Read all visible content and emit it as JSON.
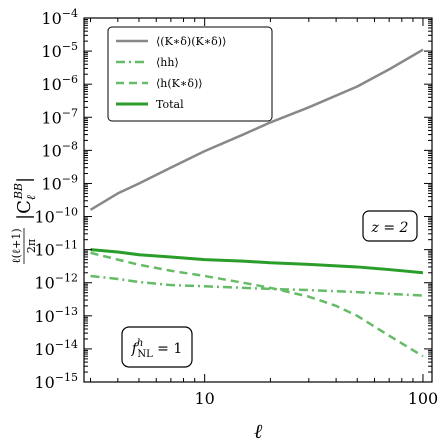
{
  "chart_data": {
    "type": "line",
    "xlabel": "ℓ",
    "ylabel": "ℓ(ℓ+1)/2π |C_ℓ^BB|",
    "xscale": "log",
    "yscale": "log",
    "xlim": [
      2.8,
      110
    ],
    "ylim": [
      1e-15,
      0.0001
    ],
    "x_ticks": [
      {
        "value": 10,
        "label": "10"
      },
      {
        "value": 100,
        "label": "100"
      }
    ],
    "y_ticks": [
      {
        "exp": -4,
        "label": "10^-4"
      },
      {
        "exp": -5,
        "label": "10^-5"
      },
      {
        "exp": -6,
        "label": "10^-6"
      },
      {
        "exp": -7,
        "label": "10^-7"
      },
      {
        "exp": -8,
        "label": "10^-8"
      },
      {
        "exp": -9,
        "label": "10^-9"
      },
      {
        "exp": -10,
        "label": "10^-10"
      },
      {
        "exp": -11,
        "label": "10^-11"
      },
      {
        "exp": -12,
        "label": "10^-12"
      },
      {
        "exp": -13,
        "label": "10^-13"
      },
      {
        "exp": -14,
        "label": "10^-14"
      },
      {
        "exp": -15,
        "label": "10^-15"
      }
    ],
    "series": [
      {
        "name": "⟨(K∗δ)(K∗δ)⟩",
        "color": "#888888",
        "style": "solid",
        "x": [
          3,
          4,
          5,
          7,
          10,
          15,
          20,
          30,
          50,
          70,
          100
        ],
        "y": [
          1.6e-10,
          5e-10,
          1e-09,
          3e-09,
          9.5e-09,
          3e-08,
          7e-08,
          2e-07,
          8.5e-07,
          2.8e-06,
          1.1e-05
        ]
      },
      {
        "name": "⟨hh⟩",
        "color": "#66bb66",
        "style": "dashdot",
        "x": [
          3,
          4,
          5,
          7,
          10,
          15,
          20,
          30,
          50,
          70,
          100
        ],
        "y": [
          1.6e-12,
          1.3e-12,
          1.05e-12,
          8.5e-13,
          7.8e-13,
          7e-13,
          6.5e-13,
          6e-13,
          5.2e-13,
          4.6e-13,
          4.1e-13
        ]
      },
      {
        "name": "⟨h(K∗δ)⟩",
        "color": "#66bb66",
        "style": "dashed",
        "x": [
          3,
          4,
          5,
          7,
          10,
          15,
          20,
          30,
          40,
          50,
          70,
          100
        ],
        "y": [
          8e-12,
          5e-12,
          3.5e-12,
          2.3e-12,
          1.6e-12,
          1e-12,
          7e-13,
          3.8e-13,
          2e-13,
          1e-13,
          2.5e-14,
          6e-15
        ]
      },
      {
        "name": "Total",
        "color": "#2a9d2a",
        "style": "solid",
        "x": [
          3,
          4,
          5,
          7,
          10,
          15,
          20,
          30,
          50,
          70,
          100
        ],
        "y": [
          1e-11,
          8.5e-12,
          7e-12,
          6e-12,
          5e-12,
          4.5e-12,
          4e-12,
          3.6e-12,
          3e-12,
          2.5e-12,
          2e-12
        ]
      }
    ],
    "annotations": [
      {
        "id": "redshift",
        "text": "z = 2"
      },
      {
        "id": "fnl",
        "text": "f^h_NL = 1"
      }
    ],
    "legend_position": "top-left",
    "grid": false
  }
}
